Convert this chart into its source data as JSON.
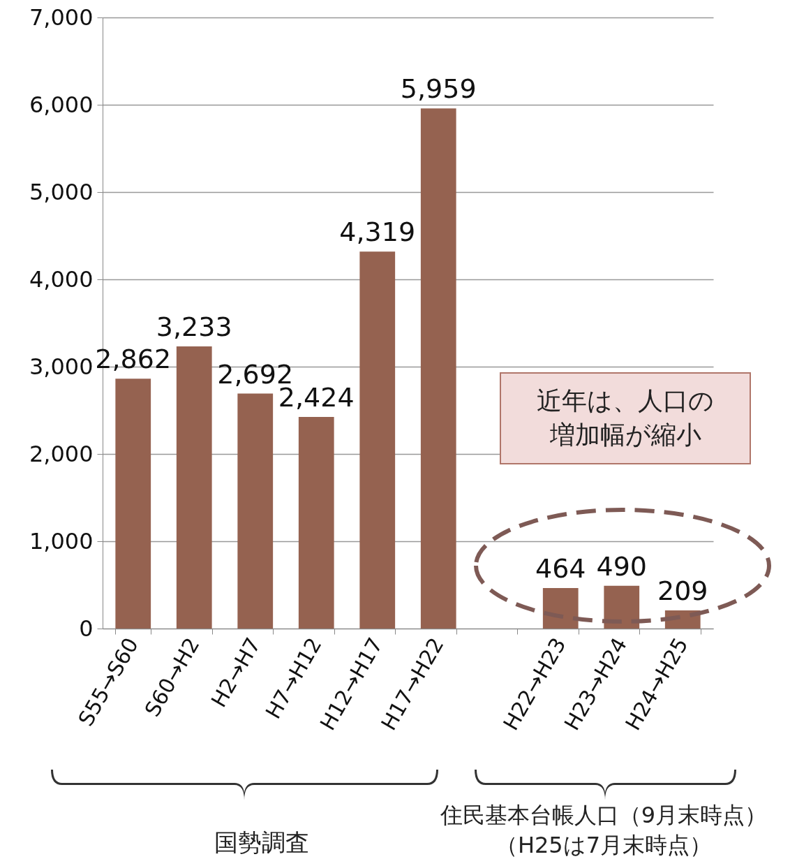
{
  "chart_data": {
    "type": "bar",
    "categories": [
      "S55→S60",
      "S60→H2",
      "H2→H7",
      "H7→H12",
      "H12→H17",
      "H17→H22",
      null,
      "H22→H23",
      "H23→H24",
      "H24→H25"
    ],
    "values": [
      2862,
      3233,
      2692,
      2424,
      4319,
      5959,
      null,
      464,
      490,
      209
    ],
    "color": "#956250",
    "value_labels": [
      "2,862",
      "3,233",
      "2,692",
      "2,424",
      "4,319",
      "5,959",
      null,
      "464",
      "490",
      "209"
    ],
    "ylim": [
      0,
      7000
    ],
    "yticks": [
      0,
      {
        "value": 1000,
        "label": "1,000"
      },
      {
        "value": 2000,
        "label": "2,000"
      },
      {
        "value": 3000,
        "label": "3,000"
      },
      {
        "value": 4000,
        "label": "4,000"
      },
      {
        "value": 5000,
        "label": "5,000"
      },
      {
        "value": 6000,
        "label": "6,000"
      },
      {
        "value": 7000,
        "label": "7,000"
      }
    ],
    "grid": "y",
    "annotations": [
      "近年は、人口の増加幅が縮小",
      "国勢調査",
      "住民基本台帳人口（9月末時点）（H25は7月末時点）"
    ]
  }
}
